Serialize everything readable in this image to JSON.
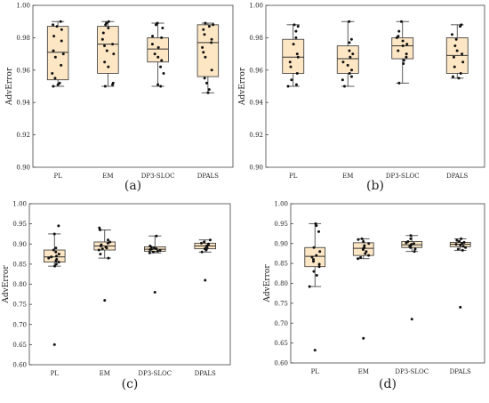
{
  "chart_data": [
    {
      "type": "box",
      "panel_label": "(a)",
      "ylabel": "AdvError",
      "ylim": [
        0.9,
        1.0
      ],
      "yticks": [
        0.9,
        0.92,
        0.94,
        0.96,
        0.98,
        1.0
      ],
      "ytick_labels": [
        "0.90",
        "0.92",
        "0.94",
        "0.96",
        "0.98",
        "1.00"
      ],
      "categories": [
        "PL",
        "EM",
        "DP3-SLOC",
        "DPALS"
      ],
      "boxes": [
        {
          "whislo": 0.95,
          "q1": 0.954,
          "med": 0.971,
          "q3": 0.987,
          "whishi": 0.99,
          "points": [
            0.99,
            0.988,
            0.987,
            0.985,
            0.981,
            0.978,
            0.972,
            0.97,
            0.968,
            0.963,
            0.958,
            0.955,
            0.952,
            0.951,
            0.95
          ]
        },
        {
          "whislo": 0.95,
          "q1": 0.958,
          "med": 0.976,
          "q3": 0.987,
          "whishi": 0.99,
          "points": [
            0.99,
            0.989,
            0.988,
            0.986,
            0.983,
            0.979,
            0.976,
            0.975,
            0.972,
            0.97,
            0.965,
            0.962,
            0.952,
            0.951,
            0.95
          ]
        },
        {
          "whislo": 0.95,
          "q1": 0.965,
          "med": 0.973,
          "q3": 0.98,
          "whishi": 0.989,
          "points": [
            0.989,
            0.988,
            0.986,
            0.981,
            0.98,
            0.976,
            0.974,
            0.97,
            0.968,
            0.966,
            0.962,
            0.958,
            0.951,
            0.95
          ]
        },
        {
          "whislo": 0.946,
          "q1": 0.956,
          "med": 0.977,
          "q3": 0.988,
          "whishi": 0.989,
          "points": [
            0.989,
            0.988,
            0.987,
            0.985,
            0.982,
            0.979,
            0.977,
            0.974,
            0.971,
            0.968,
            0.96,
            0.955,
            0.952,
            0.948,
            0.946
          ]
        }
      ]
    },
    {
      "type": "box",
      "panel_label": "(b)",
      "ylabel": "AdvError",
      "ylim": [
        0.9,
        1.0
      ],
      "yticks": [
        0.9,
        0.92,
        0.94,
        0.96,
        0.98,
        1.0
      ],
      "ytick_labels": [
        "0.90",
        "0.92",
        "0.94",
        "0.96",
        "0.98",
        "1.00"
      ],
      "categories": [
        "PL",
        "EM",
        "DP3-SLOC",
        "DPALS"
      ],
      "boxes": [
        {
          "whislo": 0.95,
          "q1": 0.958,
          "med": 0.968,
          "q3": 0.979,
          "whishi": 0.988,
          "points": [
            0.988,
            0.987,
            0.984,
            0.98,
            0.976,
            0.97,
            0.968,
            0.965,
            0.962,
            0.958,
            0.954,
            0.951,
            0.95
          ]
        },
        {
          "whislo": 0.95,
          "q1": 0.958,
          "med": 0.967,
          "q3": 0.975,
          "whishi": 0.99,
          "points": [
            0.99,
            0.979,
            0.977,
            0.972,
            0.97,
            0.968,
            0.965,
            0.963,
            0.96,
            0.958,
            0.956,
            0.954,
            0.95
          ]
        },
        {
          "whislo": 0.952,
          "q1": 0.967,
          "med": 0.975,
          "q3": 0.98,
          "whishi": 0.99,
          "points": [
            0.99,
            0.984,
            0.981,
            0.98,
            0.978,
            0.976,
            0.975,
            0.972,
            0.97,
            0.968,
            0.966,
            0.964,
            0.952
          ]
        },
        {
          "whislo": 0.955,
          "q1": 0.958,
          "med": 0.969,
          "q3": 0.98,
          "whishi": 0.988,
          "points": [
            0.988,
            0.987,
            0.982,
            0.979,
            0.975,
            0.972,
            0.97,
            0.968,
            0.965,
            0.962,
            0.958,
            0.956,
            0.955
          ]
        }
      ]
    },
    {
      "type": "box",
      "panel_label": "(c)",
      "ylabel": "AdvError",
      "ylim": [
        0.6,
        1.0
      ],
      "yticks": [
        0.6,
        0.65,
        0.7,
        0.75,
        0.8,
        0.85,
        0.9,
        0.95,
        1.0
      ],
      "ytick_labels": [
        "0.60",
        "0.65",
        "0.70",
        "0.75",
        "0.80",
        "0.85",
        "0.90",
        "0.95",
        "1.00"
      ],
      "categories": [
        "PL",
        "EM",
        "DP3-SLOC",
        "DPALS"
      ],
      "boxes": [
        {
          "whislo": 0.845,
          "q1": 0.855,
          "med": 0.868,
          "q3": 0.885,
          "whishi": 0.925,
          "points": [
            0.945,
            0.925,
            0.89,
            0.885,
            0.88,
            0.875,
            0.87,
            0.868,
            0.865,
            0.862,
            0.858,
            0.855,
            0.85,
            0.845
          ],
          "outliers": [
            0.65
          ]
        },
        {
          "whislo": 0.865,
          "q1": 0.885,
          "med": 0.895,
          "q3": 0.905,
          "whishi": 0.935,
          "points": [
            0.94,
            0.935,
            0.91,
            0.905,
            0.902,
            0.898,
            0.895,
            0.892,
            0.89,
            0.888,
            0.885,
            0.875,
            0.865
          ],
          "outliers": [
            0.76
          ]
        },
        {
          "whislo": 0.878,
          "q1": 0.882,
          "med": 0.887,
          "q3": 0.893,
          "whishi": 0.92,
          "points": [
            0.92,
            0.895,
            0.892,
            0.89,
            0.888,
            0.887,
            0.886,
            0.884,
            0.882,
            0.88,
            0.878
          ],
          "outliers": [
            0.78
          ]
        },
        {
          "whislo": 0.88,
          "q1": 0.888,
          "med": 0.895,
          "q3": 0.902,
          "whishi": 0.91,
          "points": [
            0.91,
            0.905,
            0.902,
            0.9,
            0.898,
            0.895,
            0.892,
            0.89,
            0.888,
            0.885,
            0.88
          ],
          "outliers": [
            0.81
          ]
        }
      ]
    },
    {
      "type": "box",
      "panel_label": "(d)",
      "ylabel": "AdvError",
      "ylim": [
        0.6,
        1.0
      ],
      "yticks": [
        0.6,
        0.65,
        0.7,
        0.75,
        0.8,
        0.85,
        0.9,
        0.95,
        1.0
      ],
      "ytick_labels": [
        "0.60",
        "0.65",
        "0.70",
        "0.75",
        "0.80",
        "0.85",
        "0.90",
        "0.95",
        "1.00"
      ],
      "categories": [
        "PL",
        "EM",
        "DP3-SLOC",
        "DPALS"
      ],
      "boxes": [
        {
          "whislo": 0.792,
          "q1": 0.842,
          "med": 0.868,
          "q3": 0.89,
          "whishi": 0.95,
          "points": [
            0.95,
            0.945,
            0.93,
            0.89,
            0.88,
            0.87,
            0.866,
            0.86,
            0.855,
            0.848,
            0.842,
            0.83,
            0.82,
            0.792
          ],
          "outliers": [
            0.632
          ]
        },
        {
          "whislo": 0.862,
          "q1": 0.87,
          "med": 0.888,
          "q3": 0.902,
          "whishi": 0.912,
          "points": [
            0.912,
            0.91,
            0.905,
            0.9,
            0.895,
            0.89,
            0.888,
            0.885,
            0.88,
            0.875,
            0.87,
            0.865,
            0.862
          ],
          "outliers": [
            0.662
          ]
        },
        {
          "whislo": 0.88,
          "q1": 0.89,
          "med": 0.897,
          "q3": 0.905,
          "whishi": 0.92,
          "points": [
            0.92,
            0.912,
            0.905,
            0.902,
            0.9,
            0.898,
            0.896,
            0.893,
            0.89,
            0.886,
            0.88
          ],
          "outliers": [
            0.71
          ]
        },
        {
          "whislo": 0.883,
          "q1": 0.892,
          "med": 0.898,
          "q3": 0.903,
          "whishi": 0.912,
          "points": [
            0.912,
            0.908,
            0.905,
            0.903,
            0.9,
            0.898,
            0.896,
            0.893,
            0.89,
            0.886,
            0.883
          ],
          "outliers": [
            0.74
          ]
        }
      ]
    }
  ],
  "colors": {
    "box_fill": "#fde6c4",
    "box_stroke": "#333333",
    "point": "#111111",
    "axis": "#444444",
    "tick_label": "#333333"
  }
}
